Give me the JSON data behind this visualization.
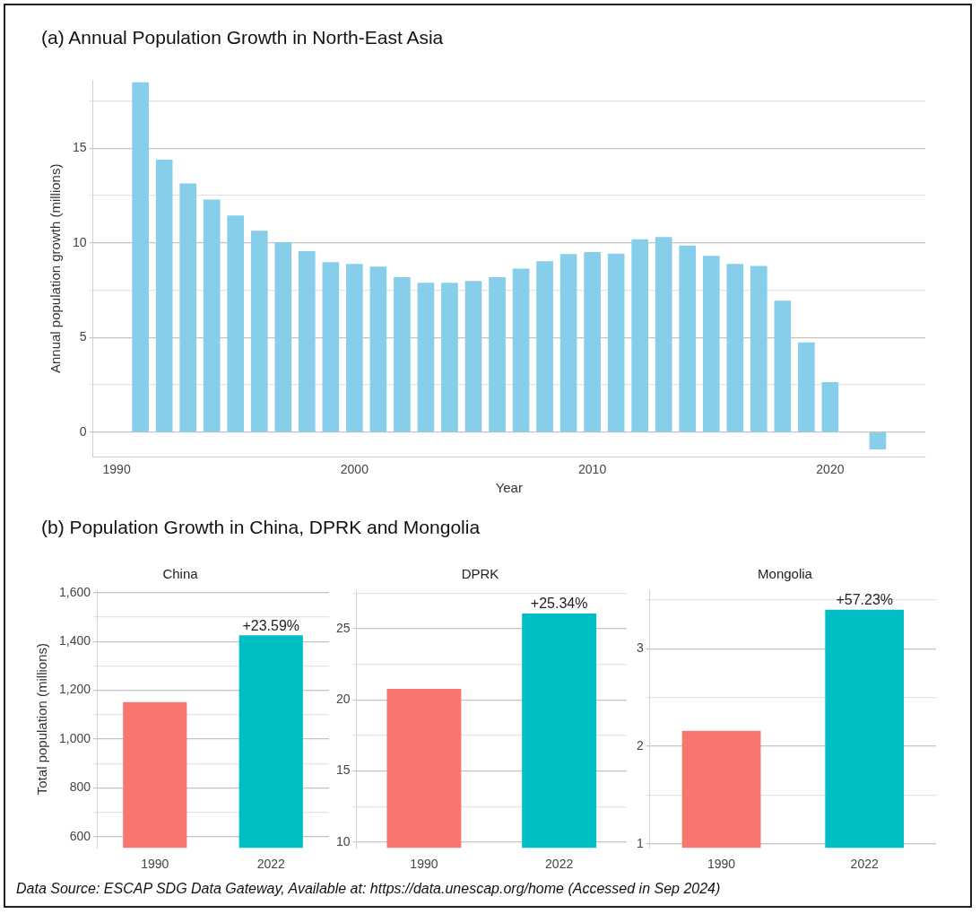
{
  "chart_data": [
    {
      "type": "bar",
      "title": "(a) Annual Population Growth in North-East Asia",
      "xlabel": "Year",
      "ylabel": "Annual population growth (millions)",
      "x": [
        1991,
        1992,
        1993,
        1994,
        1995,
        1996,
        1997,
        1998,
        1999,
        2000,
        2001,
        2002,
        2003,
        2004,
        2005,
        2006,
        2007,
        2008,
        2009,
        2010,
        2011,
        2012,
        2013,
        2014,
        2015,
        2016,
        2017,
        2018,
        2019,
        2020,
        2022
      ],
      "values": [
        18.47,
        14.38,
        13.13,
        12.28,
        11.43,
        10.63,
        10.02,
        9.55,
        8.97,
        8.87,
        8.73,
        8.17,
        7.88,
        7.88,
        7.97,
        8.17,
        8.63,
        9.02,
        9.4,
        9.5,
        9.42,
        10.18,
        10.3,
        9.85,
        9.3,
        8.87,
        8.77,
        6.93,
        4.73,
        2.63,
        -0.9
      ],
      "color": "#87ceeb",
      "xlim": [
        1989,
        2024
      ],
      "xticks": [
        1990,
        2000,
        2010,
        2020
      ],
      "ylim": [
        -1.3,
        18.6
      ],
      "yticks": [
        0,
        {
          "value": 2.5,
          "label": null
        },
        5,
        {
          "value": 7.5,
          "label": null
        },
        10,
        {
          "value": 12.5,
          "label": null
        },
        15,
        {
          "value": 17.5,
          "label": null
        }
      ],
      "grid": "y"
    },
    {
      "type": "bar",
      "title": "(b) Population Growth in China, DPRK and Mongolia",
      "subtitle": "China",
      "ylabel": "Total population (millions)",
      "categories": [
        "1990",
        "2022"
      ],
      "values": [
        1152,
        1425
      ],
      "colors": [
        "#f8766d",
        "#00bfc4"
      ],
      "annotations": [
        {
          "text": "+23.59%",
          "x": "2022",
          "y": 1425
        }
      ],
      "ylim": [
        555,
        1610
      ],
      "yticks": [
        600,
        {
          "value": 700,
          "label": null
        },
        800,
        {
          "value": 900,
          "label": null
        },
        {
          "value": 1000,
          "label": "1,000"
        },
        {
          "value": 1100,
          "label": null
        },
        {
          "value": 1200,
          "label": "1,200"
        },
        {
          "value": 1300,
          "label": null
        },
        {
          "value": 1400,
          "label": "1,400"
        },
        {
          "value": 1500,
          "label": null
        },
        {
          "value": 1600,
          "label": "1,600"
        }
      ],
      "grid": "y"
    },
    {
      "type": "bar",
      "title": "DPRK",
      "categories": [
        "1990",
        "2022"
      ],
      "values": [
        20.77,
        26.06
      ],
      "colors": [
        "#f8766d",
        "#00bfc4"
      ],
      "annotations": [
        {
          "text": "+25.34%",
          "x": "2022",
          "y": 26.06
        }
      ],
      "ylim": [
        9.6,
        27.7
      ],
      "yticks": [
        10,
        {
          "value": 12.5,
          "label": null
        },
        15,
        {
          "value": 17.5,
          "label": null
        },
        20,
        {
          "value": 22.5,
          "label": null
        },
        25,
        {
          "value": 27.5,
          "label": null
        }
      ],
      "grid": "y"
    },
    {
      "type": "bar",
      "title": "Mongolia",
      "categories": [
        "1990",
        "2022"
      ],
      "values": [
        2.16,
        3.4
      ],
      "colors": [
        "#f8766d",
        "#00bfc4"
      ],
      "ylim": [
        0.96,
        3.6
      ],
      "yticks": [
        1,
        {
          "value": 1.5,
          "label": null
        },
        2,
        {
          "value": 2.5,
          "label": null
        },
        3,
        {
          "value": 3.5,
          "label": null
        }
      ],
      "grid": "y",
      "annotations": [
        {
          "text": "+57.23%",
          "x": "2022",
          "y": 3.4
        },
        "Data Source: ESCAP SDG Data Gateway, Available at: https://data.unescap.org/home (Accessed in Sep 2024)"
      ]
    }
  ]
}
